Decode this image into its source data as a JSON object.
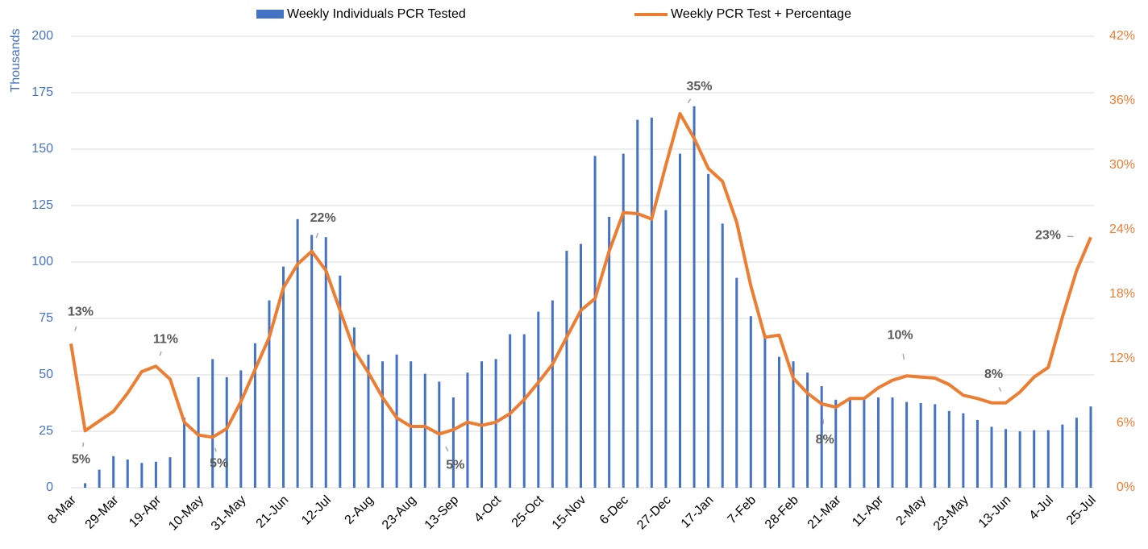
{
  "chart_data": {
    "type": "bar",
    "ylabel": "Thousands",
    "categories": [
      "8-Mar",
      null,
      null,
      "29-Mar",
      null,
      null,
      "19-Apr",
      null,
      null,
      "10-May",
      null,
      null,
      "31-May",
      null,
      null,
      "21-Jun",
      null,
      null,
      "12-Jul",
      null,
      null,
      "2-Aug",
      null,
      null,
      "23-Aug",
      null,
      null,
      "13-Sep",
      null,
      null,
      "4-Oct",
      null,
      null,
      "25-Oct",
      null,
      null,
      "15-Nov",
      null,
      null,
      "6-Dec",
      null,
      null,
      "27-Dec",
      null,
      null,
      "17-Jan",
      null,
      null,
      "7-Feb",
      null,
      null,
      "28-Feb",
      null,
      null,
      "21-Mar",
      null,
      null,
      "11-Apr",
      null,
      null,
      "2-May",
      null,
      null,
      "23-May",
      null,
      null,
      "13-Jun",
      null,
      null,
      "4-Jul",
      null,
      null,
      "25-Jul"
    ],
    "series": [
      {
        "name": "Weekly Individuals PCR Tested",
        "type": "bar",
        "color": "#4472c4",
        "values": [
          0,
          2,
          8,
          14,
          12.5,
          11,
          11.5,
          13.5,
          31,
          49,
          57,
          49,
          52,
          64,
          83,
          98,
          119,
          112,
          111,
          94,
          71,
          59,
          56,
          59,
          56,
          50.5,
          47,
          40,
          51,
          56,
          57,
          68,
          68,
          78,
          83,
          105,
          108,
          147,
          120,
          148,
          163,
          164,
          123,
          148,
          169,
          139,
          117,
          93,
          76,
          68,
          58,
          56,
          51,
          45,
          39,
          40,
          39,
          40,
          40,
          38,
          37.5,
          37,
          34,
          33,
          30,
          27,
          26,
          25,
          25.5,
          25.5,
          28,
          31,
          36
        ]
      },
      {
        "name": "Weekly PCR Test + Percentage",
        "type": "line",
        "axis": "y2",
        "color": "#ed7d31",
        "values": [
          13.4,
          5.3,
          6.2,
          7.1,
          8.8,
          10.8,
          11.3,
          10.1,
          6.1,
          4.9,
          4.7,
          5.5,
          8.0,
          11.0,
          14.0,
          18.6,
          20.8,
          22.0,
          20.2,
          16.5,
          12.8,
          10.7,
          8.4,
          6.5,
          5.7,
          5.7,
          5.0,
          5.4,
          6.1,
          5.8,
          6.1,
          6.9,
          8.2,
          9.8,
          11.5,
          14.0,
          16.5,
          17.6,
          22.0,
          25.6,
          25.5,
          25.0,
          30.0,
          34.8,
          32.5,
          29.7,
          28.5,
          24.7,
          18.8,
          14.0,
          14.2,
          10.2,
          8.8,
          7.8,
          7.5,
          8.3,
          8.3,
          9.3,
          10.0,
          10.4,
          10.3,
          10.2,
          9.6,
          8.6,
          8.3,
          7.9,
          7.9,
          8.9,
          10.3,
          11.2,
          15.9,
          20.2,
          23.3
        ],
        "value_labels": [
          "13%",
          "5%",
          null,
          null,
          null,
          null,
          "11%",
          null,
          null,
          null,
          "5%",
          null,
          null,
          null,
          null,
          null,
          null,
          "22%",
          null,
          null,
          null,
          null,
          null,
          null,
          null,
          null,
          "5%",
          null,
          null,
          null,
          null,
          null,
          null,
          null,
          null,
          null,
          null,
          null,
          null,
          null,
          null,
          null,
          null,
          "35%",
          null,
          null,
          null,
          null,
          null,
          null,
          null,
          null,
          null,
          "8%",
          null,
          null,
          null,
          null,
          null,
          "10%",
          null,
          null,
          null,
          null,
          null,
          null,
          "8%",
          null,
          null,
          null,
          null,
          null,
          "23%"
        ]
      }
    ],
    "ylim": [
      0,
      200
    ],
    "yticks": [
      0,
      25,
      50,
      75,
      100,
      125,
      150,
      175,
      200
    ],
    "y2lim": [
      0,
      42
    ],
    "y2ticks": [
      {
        "value": 0,
        "label": "0%"
      },
      {
        "value": 6,
        "label": "6%"
      },
      {
        "value": 12,
        "label": "12%"
      },
      {
        "value": 18,
        "label": "18%"
      },
      {
        "value": 24,
        "label": "24%"
      },
      {
        "value": 30,
        "label": "30%"
      },
      {
        "value": 36,
        "label": "36%"
      },
      {
        "value": 42,
        "label": "42%"
      }
    ],
    "grid": true,
    "legend": "top"
  }
}
